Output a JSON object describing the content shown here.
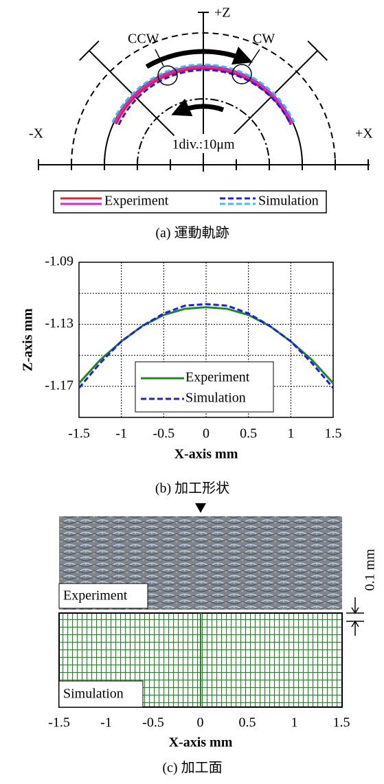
{
  "panel_a": {
    "axis_labels": {
      "z": "+Z",
      "neg_x": "-X",
      "pos_x": "+X"
    },
    "annotations": {
      "ccw": "CCW",
      "cw": "CW",
      "scale": "1div.:10μm"
    },
    "legend": [
      "Experiment",
      "Simulation"
    ],
    "caption": "(a) 運動軌跡"
  },
  "chart_data": {
    "type": "line",
    "xlabel": "X-axis mm",
    "ylabel": "Z-axis mm",
    "caption": "(b) 加工形状",
    "x": [
      -1.5,
      -1.25,
      -1,
      -0.75,
      -0.5,
      -0.25,
      0,
      0.25,
      0.5,
      0.75,
      1,
      1.25,
      1.5
    ],
    "series": [
      {
        "name": "Experiment",
        "color": "#1a8a1a",
        "style": "solid",
        "values": [
          -1.168,
          -1.153,
          -1.141,
          -1.131,
          -1.124,
          -1.12,
          -1.119,
          -1.12,
          -1.124,
          -1.131,
          -1.141,
          -1.153,
          -1.168
        ]
      },
      {
        "name": "Simulation",
        "color": "#1a1aff",
        "style": "dashed",
        "values": [
          -1.171,
          -1.155,
          -1.141,
          -1.131,
          -1.123,
          -1.118,
          -1.117,
          -1.118,
          -1.123,
          -1.131,
          -1.141,
          -1.155,
          -1.171
        ]
      }
    ],
    "xlim": [
      -1.5,
      1.5
    ],
    "xticks": [
      -1.5,
      -1,
      -0.5,
      0,
      0.5,
      1,
      1.5
    ],
    "ylim": [
      -1.19,
      -1.09
    ],
    "yticks": [
      -1.17,
      -1.13,
      -1.09
    ],
    "minor_yticks": [
      -1.15,
      -1.11
    ],
    "grid": true
  },
  "panel_c": {
    "labels": {
      "experiment": "Experiment",
      "simulation": "Simulation",
      "scale": "0.1 mm"
    },
    "xlabel": "X-axis mm",
    "xlim": [
      -1.5,
      1.5
    ],
    "xticks": [
      -1.5,
      -1,
      -0.5,
      0,
      0.5,
      1,
      1.5
    ],
    "caption": "(c) 加工面"
  }
}
